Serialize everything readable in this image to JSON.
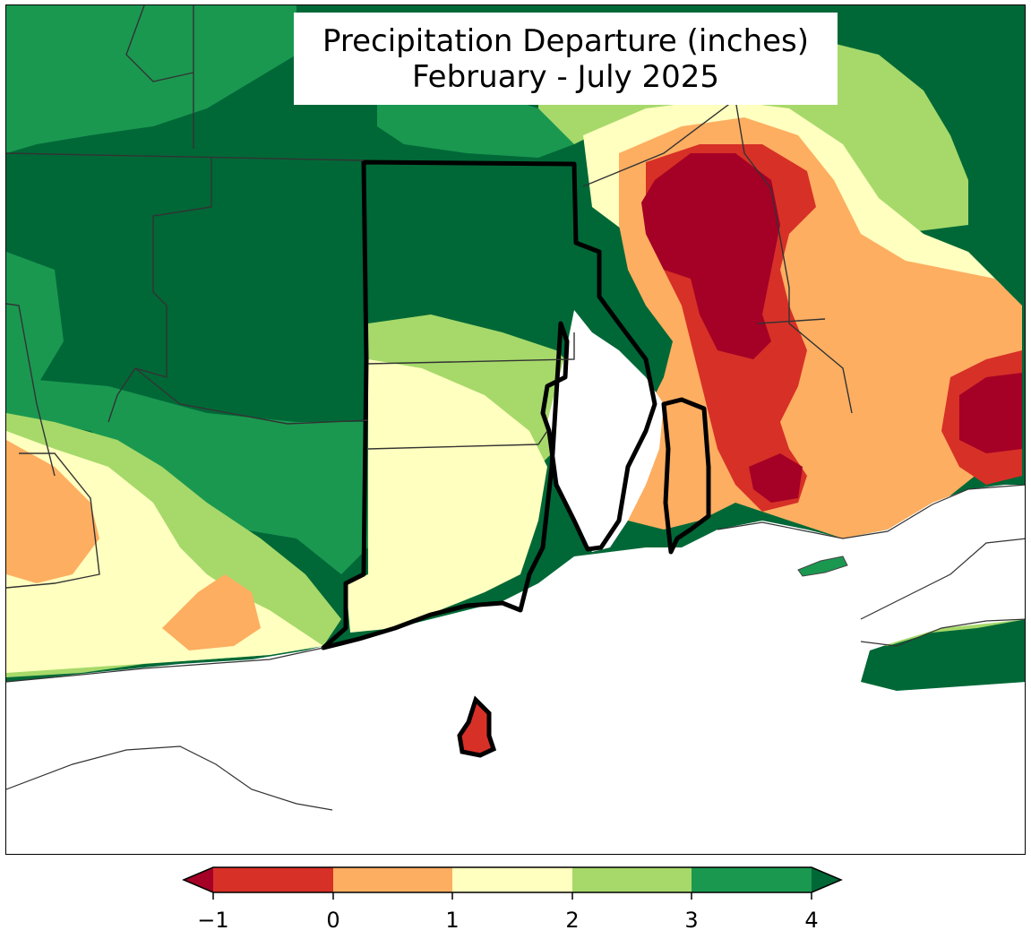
{
  "title": {
    "line1": "Precipitation Departure (inches)",
    "line2": "February - July 2025"
  },
  "colorbar": {
    "ticks": [
      "−1",
      "0",
      "1",
      "2",
      "3",
      "4"
    ],
    "bins": [
      {
        "range": "< -1",
        "color": "#a50026"
      },
      {
        "range": "-1 to 0",
        "color": "#d73027"
      },
      {
        "range": "0 to 1",
        "color": "#fdae61"
      },
      {
        "range": "1 to 2",
        "color": "#ffffbf"
      },
      {
        "range": "2 to 3",
        "color": "#a6d96a"
      },
      {
        "range": "3 to 4",
        "color": "#1a9850"
      },
      {
        "range": "> 4",
        "color": "#006837"
      }
    ],
    "extend": "both"
  },
  "colors": {
    "water": "#ffffff",
    "borders": "#000000"
  }
}
